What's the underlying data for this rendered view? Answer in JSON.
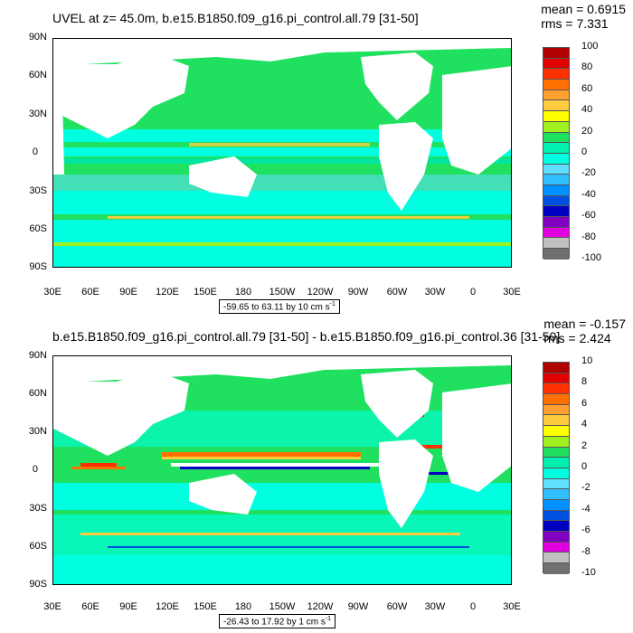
{
  "panels": [
    {
      "title": "UVEL at z=  45.0m, b.e15.B1850.f09_g16.pi_control.all.79 [31-50]",
      "mean": "mean = 0.6915",
      "rms": "rms = 7.331",
      "range_text": "-59.65 to 63.11 by 10 cm s",
      "range_sup": "-1",
      "colorbar_labels": [
        "100",
        "80",
        "60",
        "40",
        "20",
        "0",
        "-20",
        "-40",
        "-60",
        "-80",
        "-100"
      ]
    },
    {
      "title": "b.e15.B1850.f09_g16.pi_control.all.79 [31-50] - b.e15.B1850.f09_g16.pi_control.36 [31-50]",
      "mean": "mean = -0.157",
      "rms": "rms = 2.424",
      "range_text": "-26.43 to 17.92 by 1 cm s",
      "range_sup": "-1",
      "colorbar_labels": [
        "10",
        "8",
        "6",
        "4",
        "2",
        "0",
        "-2",
        "-4",
        "-6",
        "-8",
        "-10"
      ]
    }
  ],
  "lat_labels": [
    "90N",
    "60N",
    "30N",
    "0",
    "30S",
    "60S",
    "90S"
  ],
  "lon_labels": [
    "30E",
    "60E",
    "90E",
    "120E",
    "150E",
    "180",
    "150W",
    "120W",
    "90W",
    "60W",
    "30W",
    "0",
    "30E"
  ],
  "colorbar_colors": [
    "#b00000",
    "#e00000",
    "#ff3000",
    "#ff7000",
    "#ffa030",
    "#ffcc40",
    "#ffff00",
    "#a0f020",
    "#20e060",
    "#00f0b0",
    "#00ffe0",
    "#60e0ff",
    "#30c0ff",
    "#0090ff",
    "#0050e0",
    "#0000c0",
    "#8000c0",
    "#e000e0",
    "#c0c0c0",
    "#707070"
  ],
  "colors": {
    "ocean": "#00e6a0",
    "ocean_light": "#5cf0d0",
    "land": "#ffffff"
  }
}
